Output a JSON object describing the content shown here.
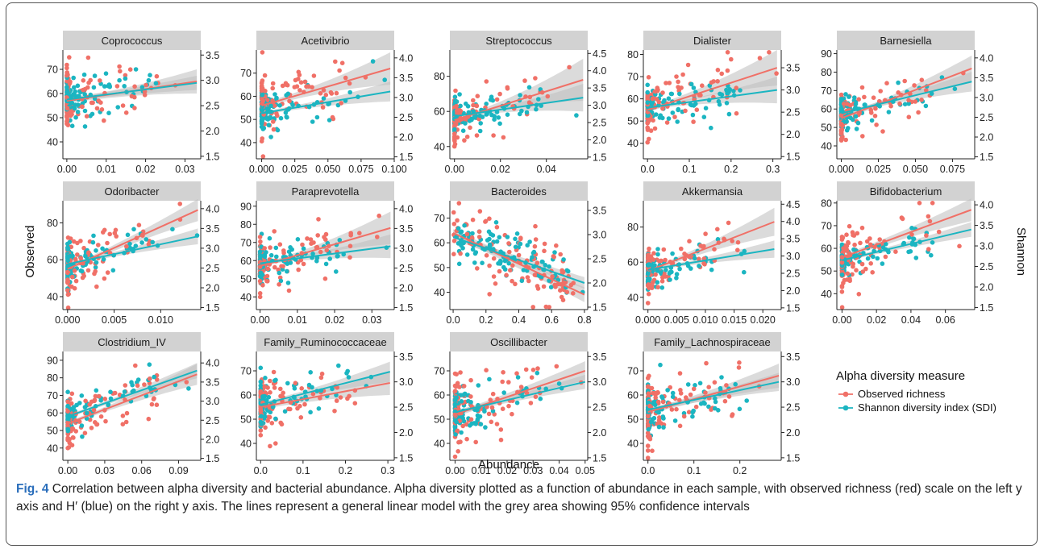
{
  "caption": {
    "label": "Fig. 4",
    "text": "Correlation between alpha diversity and bacterial abundance. Alpha diversity plotted as a function of abundance in each sample, with observed richness (red) scale on the left y axis and H′ (blue) on the right y axis. The lines represent a general linear model with the grey area showing 95% confidence intervals"
  },
  "colors": {
    "observed": "#F07067",
    "shannon": "#1BB5C1",
    "strip": "#D2D2D2",
    "ribbon": "#BDBDBD"
  },
  "chart_data": {
    "type": "scatter",
    "xlabel": "Abundance",
    "ylabel_left": "Observed",
    "ylabel_right": "Shannon",
    "legend": {
      "title": "Alpha diversity measure",
      "placement": "right",
      "entries": [
        "Observed richness",
        "Shannon diversity index (SDI)"
      ]
    },
    "panels": [
      {
        "name": "Coprococcus",
        "xlim": [
          -0.001,
          0.034
        ],
        "xticks": [
          0,
          0.01,
          0.02,
          0.03
        ],
        "xtick_labels": [
          "0.00",
          "0.01",
          "0.02",
          "0.03"
        ],
        "left_ylim": [
          33,
          78
        ],
        "left_ticks": [
          40,
          50,
          60,
          70
        ],
        "right_ylim": [
          1.45,
          3.6
        ],
        "right_ticks": [
          1.5,
          2.0,
          2.5,
          3.0,
          3.5
        ],
        "right_tick_labels": [
          "1.5",
          "2.0",
          "2.5",
          "3.0",
          "3.5"
        ],
        "xmax": 0.033,
        "obs_fit": [
          57,
          65
        ],
        "obs_se": [
          1,
          5
        ],
        "sh_fit": [
          2.62,
          2.95
        ],
        "sh_se": [
          0.04,
          0.14
        ],
        "spread_scale": 0.12
      },
      {
        "name": "Acetivibrio",
        "xlim": [
          -0.004,
          0.1
        ],
        "xticks": [
          0,
          0.025,
          0.05,
          0.075,
          0.1
        ],
        "xtick_labels": [
          "0.000",
          "0.025",
          "0.050",
          "0.075",
          "0.100"
        ],
        "left_ylim": [
          33,
          80
        ],
        "left_ticks": [
          40,
          50,
          60,
          70
        ],
        "right_ylim": [
          1.45,
          4.2
        ],
        "right_ticks": [
          1.5,
          2.0,
          2.5,
          3.0,
          3.5,
          4.0
        ],
        "right_tick_labels": [
          "1.5",
          "2.0",
          "2.5",
          "3.0",
          "3.5",
          "4.0"
        ],
        "xmax": 0.097,
        "obs_fit": [
          56,
          72
        ],
        "obs_se": [
          1,
          7
        ],
        "sh_fit": [
          2.6,
          3.15
        ],
        "sh_se": [
          0.04,
          0.25
        ],
        "spread_scale": 0.04
      },
      {
        "name": "Streptococcus",
        "xlim": [
          -0.002,
          0.058
        ],
        "xticks": [
          0,
          0.02,
          0.04
        ],
        "xtick_labels": [
          "0.00",
          "0.02",
          "0.04"
        ],
        "left_ylim": [
          33,
          95
        ],
        "left_ticks": [
          40,
          60,
          80
        ],
        "right_ylim": [
          1.45,
          4.6
        ],
        "right_ticks": [
          1.5,
          2.0,
          2.5,
          3.0,
          3.5,
          4.0,
          4.5
        ],
        "right_tick_labels": [
          "1.5",
          "2.0",
          "2.5",
          "3.0",
          "3.5",
          "4.0",
          "4.5"
        ],
        "xmax": 0.056,
        "obs_fit": [
          55,
          78
        ],
        "obs_se": [
          1,
          12
        ],
        "sh_fit": [
          2.68,
          3.22
        ],
        "sh_se": [
          0.04,
          0.4
        ],
        "spread_scale": 0.02
      },
      {
        "name": "Dialister",
        "xlim": [
          -0.01,
          0.32
        ],
        "xticks": [
          0,
          0.1,
          0.2,
          0.3
        ],
        "xtick_labels": [
          "0.0",
          "0.1",
          "0.2",
          "0.3"
        ],
        "left_ylim": [
          33,
          82
        ],
        "left_ticks": [
          40,
          50,
          60,
          70,
          80
        ],
        "right_ylim": [
          1.45,
          3.9
        ],
        "right_ticks": [
          1.5,
          2.0,
          2.5,
          3.0,
          3.5
        ],
        "right_tick_labels": [
          "1.5",
          "2.0",
          "2.5",
          "3.0",
          "3.5"
        ],
        "xmax": 0.31,
        "obs_fit": [
          55,
          74
        ],
        "obs_se": [
          1,
          8
        ],
        "sh_fit": [
          2.6,
          3.0
        ],
        "sh_se": [
          0.04,
          0.3
        ],
        "spread_scale": 0.15
      },
      {
        "name": "Barnesiella",
        "xlim": [
          -0.003,
          0.09
        ],
        "xticks": [
          0,
          0.025,
          0.05,
          0.075
        ],
        "xtick_labels": [
          "0.000",
          "0.025",
          "0.050",
          "0.075"
        ],
        "left_ylim": [
          33,
          92
        ],
        "left_ticks": [
          40,
          50,
          60,
          70,
          80,
          90
        ],
        "right_ylim": [
          1.45,
          4.2
        ],
        "right_ticks": [
          1.5,
          2.0,
          2.5,
          3.0,
          3.5,
          4.0
        ],
        "right_tick_labels": [
          "1.5",
          "2.0",
          "2.5",
          "3.0",
          "3.5",
          "4.0"
        ],
        "xmax": 0.088,
        "obs_fit": [
          55,
          82
        ],
        "obs_se": [
          1,
          7
        ],
        "sh_fit": [
          2.6,
          3.4
        ],
        "sh_se": [
          0.04,
          0.25
        ],
        "spread_scale": 0.15
      },
      {
        "name": "Odoribacter",
        "xlim": [
          -0.0005,
          0.0143
        ],
        "xticks": [
          0,
          0.005,
          0.01
        ],
        "xtick_labels": [
          "0.000",
          "0.005",
          "0.010"
        ],
        "left_ylim": [
          33,
          92
        ],
        "left_ticks": [
          40,
          60,
          80
        ],
        "right_ylim": [
          1.45,
          4.2
        ],
        "right_ticks": [
          1.5,
          2.0,
          2.5,
          3.0,
          3.5,
          4.0
        ],
        "right_tick_labels": [
          "1.5",
          "2.0",
          "2.5",
          "3.0",
          "3.5",
          "4.0"
        ],
        "xmax": 0.014,
        "obs_fit": [
          55,
          87
        ],
        "obs_se": [
          1,
          6
        ],
        "sh_fit": [
          2.6,
          3.3
        ],
        "sh_se": [
          0.04,
          0.2
        ],
        "spread_scale": 0.12
      },
      {
        "name": "Paraprevotella",
        "xlim": [
          -0.001,
          0.036
        ],
        "xticks": [
          0,
          0.01,
          0.02,
          0.03
        ],
        "xtick_labels": [
          "0.00",
          "0.01",
          "0.02",
          "0.03"
        ],
        "left_ylim": [
          33,
          93
        ],
        "left_ticks": [
          40,
          50,
          60,
          70,
          80,
          90
        ],
        "right_ylim": [
          1.45,
          4.2
        ],
        "right_ticks": [
          1.5,
          2.0,
          2.5,
          3.0,
          3.5,
          4.0
        ],
        "right_tick_labels": [
          "1.5",
          "2.0",
          "2.5",
          "3.0",
          "3.5",
          "4.0"
        ],
        "xmax": 0.035,
        "obs_fit": [
          57,
          78
        ],
        "obs_se": [
          1,
          9
        ],
        "sh_fit": [
          2.62,
          3.05
        ],
        "sh_se": [
          0.04,
          0.3
        ],
        "spread_scale": 0.05
      },
      {
        "name": "Bacteroides",
        "xlim": [
          -0.02,
          0.82
        ],
        "xticks": [
          0,
          0.2,
          0.4,
          0.6,
          0.8
        ],
        "xtick_labels": [
          "0.0",
          "0.2",
          "0.4",
          "0.6",
          "0.8"
        ],
        "left_ylim": [
          33,
          77
        ],
        "left_ticks": [
          40,
          50,
          60,
          70
        ],
        "right_ylim": [
          1.45,
          3.7
        ],
        "right_ticks": [
          1.5,
          2.0,
          2.5,
          3.0,
          3.5
        ],
        "right_tick_labels": [
          "1.5",
          "2.0",
          "2.5",
          "3.0",
          "3.5"
        ],
        "xmax": 0.8,
        "obs_fit": [
          64,
          39
        ],
        "obs_se": [
          1.5,
          3
        ],
        "sh_fit": [
          2.95,
          2.0
        ],
        "sh_se": [
          0.06,
          0.12
        ],
        "spread_scale": 1.0
      },
      {
        "name": "Akkermansia",
        "xlim": [
          -0.0008,
          0.0232
        ],
        "xticks": [
          0,
          0.005,
          0.01,
          0.015,
          0.02
        ],
        "xtick_labels": [
          "0.000",
          "0.005",
          "0.010",
          "0.015",
          "0.020"
        ],
        "left_ylim": [
          33,
          95
        ],
        "left_ticks": [
          40,
          60,
          80
        ],
        "right_ylim": [
          1.45,
          4.6
        ],
        "right_ticks": [
          1.5,
          2.0,
          2.5,
          3.0,
          3.5,
          4.0,
          4.5
        ],
        "right_tick_labels": [
          "1.5",
          "2.0",
          "2.5",
          "3.0",
          "3.5",
          "4.0",
          "4.5"
        ],
        "xmax": 0.022,
        "obs_fit": [
          55,
          83
        ],
        "obs_se": [
          1,
          8
        ],
        "sh_fit": [
          2.6,
          3.2
        ],
        "sh_se": [
          0.04,
          0.25
        ],
        "spread_scale": 0.1
      },
      {
        "name": "Bifidobacterium",
        "xlim": [
          -0.003,
          0.077
        ],
        "xticks": [
          0,
          0.02,
          0.04,
          0.06
        ],
        "xtick_labels": [
          "0.00",
          "0.02",
          "0.04",
          "0.06"
        ],
        "left_ylim": [
          33,
          81
        ],
        "left_ticks": [
          40,
          50,
          60,
          70,
          80
        ],
        "right_ylim": [
          1.45,
          4.1
        ],
        "right_ticks": [
          1.5,
          2.0,
          2.5,
          3.0,
          3.5,
          4.0
        ],
        "right_tick_labels": [
          "1.5",
          "2.0",
          "2.5",
          "3.0",
          "3.5",
          "4.0"
        ],
        "xmax": 0.075,
        "obs_fit": [
          56,
          77
        ],
        "obs_se": [
          1,
          5
        ],
        "sh_fit": [
          2.65,
          3.4
        ],
        "sh_se": [
          0.04,
          0.18
        ],
        "spread_scale": 0.1
      },
      {
        "name": "Clostridium_IV",
        "xlim": [
          -0.004,
          0.108
        ],
        "xticks": [
          0,
          0.03,
          0.06,
          0.09
        ],
        "xtick_labels": [
          "0.00",
          "0.03",
          "0.06",
          "0.09"
        ],
        "left_ylim": [
          33,
          95
        ],
        "left_ticks": [
          40,
          50,
          60,
          70,
          80,
          90
        ],
        "right_ylim": [
          1.45,
          4.3
        ],
        "right_ticks": [
          1.5,
          2.0,
          2.5,
          3.0,
          3.5,
          4.0
        ],
        "right_tick_labels": [
          "1.5",
          "2.0",
          "2.5",
          "3.0",
          "3.5",
          "4.0"
        ],
        "xmax": 0.105,
        "obs_fit": [
          54,
          82
        ],
        "obs_se": [
          1,
          6
        ],
        "sh_fit": [
          2.6,
          3.8
        ],
        "sh_se": [
          0.04,
          0.2
        ],
        "spread_scale": 0.15
      },
      {
        "name": "Family_Ruminococcaceae",
        "xlim": [
          -0.01,
          0.315
        ],
        "xticks": [
          0,
          0.1,
          0.2,
          0.3
        ],
        "xtick_labels": [
          "0.0",
          "0.1",
          "0.2",
          "0.3"
        ],
        "left_ylim": [
          33,
          78
        ],
        "left_ticks": [
          40,
          50,
          60,
          70
        ],
        "right_ylim": [
          1.45,
          3.6
        ],
        "right_ticks": [
          1.5,
          2.0,
          2.5,
          3.0,
          3.5
        ],
        "right_tick_labels": [
          "1.5",
          "2.0",
          "2.5",
          "3.0",
          "3.5"
        ],
        "xmax": 0.305,
        "obs_fit": [
          55,
          65
        ],
        "obs_se": [
          1,
          5
        ],
        "sh_fit": [
          2.55,
          3.2
        ],
        "sh_se": [
          0.04,
          0.2
        ],
        "spread_scale": 0.35
      },
      {
        "name": "Oscillibacter",
        "xlim": [
          -0.002,
          0.051
        ],
        "xticks": [
          0,
          0.01,
          0.02,
          0.03,
          0.04,
          0.05
        ],
        "xtick_labels": [
          "0.00",
          "0.01",
          "0.02",
          "0.03",
          "0.04",
          "0.05"
        ],
        "left_ylim": [
          33,
          78
        ],
        "left_ticks": [
          40,
          50,
          60,
          70
        ],
        "right_ylim": [
          1.45,
          3.6
        ],
        "right_ticks": [
          1.5,
          2.0,
          2.5,
          3.0,
          3.5
        ],
        "right_tick_labels": [
          "1.5",
          "2.0",
          "2.5",
          "3.0",
          "3.5"
        ],
        "xmax": 0.05,
        "obs_fit": [
          52,
          70
        ],
        "obs_se": [
          1,
          4
        ],
        "sh_fit": [
          2.4,
          3.0
        ],
        "sh_se": [
          0.04,
          0.14
        ],
        "spread_scale": 0.5
      },
      {
        "name": "Family_Lachnospiraceae",
        "xlim": [
          -0.01,
          0.29
        ],
        "xticks": [
          0,
          0.1,
          0.2
        ],
        "xtick_labels": [
          "0.0",
          "0.1",
          "0.2"
        ],
        "left_ylim": [
          33,
          78
        ],
        "left_ticks": [
          40,
          50,
          60,
          70
        ],
        "right_ylim": [
          1.45,
          3.6
        ],
        "right_ticks": [
          1.5,
          2.0,
          2.5,
          3.0,
          3.5
        ],
        "right_tick_labels": [
          "1.5",
          "2.0",
          "2.5",
          "3.0",
          "3.5"
        ],
        "xmax": 0.285,
        "obs_fit": [
          53,
          68
        ],
        "obs_se": [
          1,
          5
        ],
        "sh_fit": [
          2.45,
          3.0
        ],
        "sh_se": [
          0.04,
          0.18
        ],
        "spread_scale": 0.35
      }
    ]
  }
}
